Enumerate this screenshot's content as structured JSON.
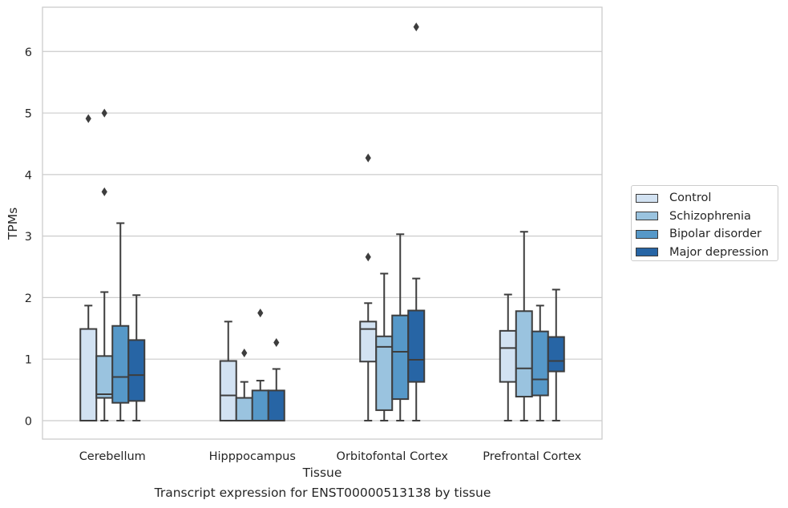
{
  "caption": "Transcript expression for ENST00000513138 by tissue",
  "chart_data": {
    "type": "box",
    "xlabel": "Tissue",
    "ylabel": "TPMs",
    "ylim": [
      -0.3,
      6.72
    ],
    "yticks": [
      0,
      1,
      2,
      3,
      4,
      5,
      6
    ],
    "grid": "horizontal",
    "legend_position": "right",
    "categories": [
      "Cerebellum",
      "Hipppocampus",
      "Orbitofontal Cortex",
      "Prefrontal Cortex"
    ],
    "series": [
      {
        "name": "Control",
        "color": "#d2e2f2",
        "boxes": [
          {
            "whislo": 0,
            "q1": 0,
            "med": 0,
            "q3": 1.49,
            "whishi": 1.87,
            "fliers": [
              4.91
            ]
          },
          {
            "whislo": 0,
            "q1": 0,
            "med": 0.41,
            "q3": 0.97,
            "whishi": 1.61,
            "fliers": []
          },
          {
            "whislo": 0,
            "q1": 0.96,
            "med": 1.49,
            "q3": 1.61,
            "whishi": 1.91,
            "fliers": [
              2.66,
              4.27
            ]
          },
          {
            "whislo": 0,
            "q1": 0.63,
            "med": 1.18,
            "q3": 1.46,
            "whishi": 2.05,
            "fliers": []
          }
        ]
      },
      {
        "name": "Schizophrenia",
        "color": "#9ac3df",
        "boxes": [
          {
            "whislo": 0,
            "q1": 0.37,
            "med": 0.43,
            "q3": 1.05,
            "whishi": 2.09,
            "fliers": [
              3.72,
              5.0
            ]
          },
          {
            "whislo": 0,
            "q1": 0,
            "med": 0,
            "q3": 0.37,
            "whishi": 0.63,
            "fliers": [
              1.1
            ]
          },
          {
            "whislo": 0,
            "q1": 0.17,
            "med": 1.2,
            "q3": 1.37,
            "whishi": 2.39,
            "fliers": []
          },
          {
            "whislo": 0,
            "q1": 0.39,
            "med": 0.85,
            "q3": 1.78,
            "whishi": 3.07,
            "fliers": []
          }
        ]
      },
      {
        "name": "Bipolar disorder",
        "color": "#5698c8",
        "boxes": [
          {
            "whislo": 0,
            "q1": 0.29,
            "med": 0.71,
            "q3": 1.54,
            "whishi": 3.21,
            "fliers": []
          },
          {
            "whislo": 0,
            "q1": 0,
            "med": 0,
            "q3": 0.49,
            "whishi": 0.65,
            "fliers": [
              1.75
            ]
          },
          {
            "whislo": 0,
            "q1": 0.35,
            "med": 1.12,
            "q3": 1.71,
            "whishi": 3.03,
            "fliers": []
          },
          {
            "whislo": 0,
            "q1": 0.41,
            "med": 0.67,
            "q3": 1.45,
            "whishi": 1.87,
            "fliers": []
          }
        ]
      },
      {
        "name": "Major depression",
        "color": "#2765a5",
        "boxes": [
          {
            "whislo": 0,
            "q1": 0.32,
            "med": 0.74,
            "q3": 1.31,
            "whishi": 2.04,
            "fliers": []
          },
          {
            "whislo": 0,
            "q1": 0,
            "med": 0,
            "q3": 0.49,
            "whishi": 0.84,
            "fliers": [
              1.27
            ]
          },
          {
            "whislo": 0,
            "q1": 0.63,
            "med": 0.99,
            "q3": 1.79,
            "whishi": 2.31,
            "fliers": [
              6.4
            ]
          },
          {
            "whislo": 0,
            "q1": 0.8,
            "med": 0.97,
            "q3": 1.36,
            "whishi": 2.13,
            "fliers": []
          }
        ]
      }
    ]
  }
}
